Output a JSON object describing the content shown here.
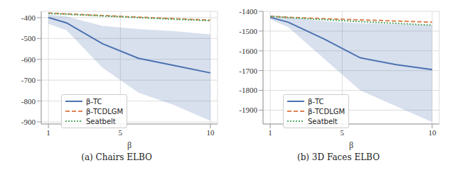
{
  "chart_data": [
    {
      "type": "line",
      "caption": "(a) Chairs ELBO",
      "x_label": "β",
      "x": [
        1,
        2,
        4,
        6,
        8,
        10
      ],
      "xlim": [
        0.6,
        10.4
      ],
      "xticks": [
        1,
        5,
        10
      ],
      "ylim": [
        -910,
        -370
      ],
      "yticks": [
        -400,
        -500,
        -600,
        -700,
        -800,
        -900
      ],
      "grid": true,
      "legend": "lower left",
      "series": [
        {
          "name": "β-TC",
          "color": "#4c72b0",
          "line_style": "solid",
          "values": [
            -400,
            -425,
            -525,
            -595,
            -630,
            -665
          ],
          "lower": [
            -430,
            -460,
            -640,
            -760,
            -820,
            -895
          ],
          "upper": [
            -385,
            -395,
            -440,
            -455,
            -465,
            -480
          ]
        },
        {
          "name": "β-TCDLGM",
          "color": "#dd8452",
          "line_style": "dashed",
          "values": [
            -378,
            -382,
            -390,
            -398,
            -405,
            -412
          ]
        },
        {
          "name": "Seatbelt",
          "color": "#55a868",
          "line_style": "dotted",
          "values": [
            -380,
            -384,
            -392,
            -400,
            -408,
            -415
          ]
        }
      ]
    },
    {
      "type": "line",
      "caption": "(b) 3D Faces ELBO",
      "x_label": "β",
      "x": [
        1,
        2,
        4,
        6,
        8,
        10
      ],
      "xlim": [
        0.6,
        10.4
      ],
      "xticks": [
        1,
        5,
        10
      ],
      "ylim": [
        -1970,
        -1400
      ],
      "yticks": [
        -1400,
        -1500,
        -1600,
        -1700,
        -1800,
        -1900
      ],
      "grid": true,
      "legend": "lower left",
      "series": [
        {
          "name": "β-TC",
          "color": "#4c72b0",
          "line_style": "solid",
          "values": [
            -1430,
            -1455,
            -1540,
            -1635,
            -1670,
            -1695
          ],
          "lower": [
            -1440,
            -1480,
            -1640,
            -1800,
            -1880,
            -1960
          ],
          "upper": [
            -1425,
            -1430,
            -1450,
            -1460,
            -1465,
            -1470
          ]
        },
        {
          "name": "β-TCDLGM",
          "color": "#dd8452",
          "line_style": "dashed",
          "values": [
            -1425,
            -1430,
            -1437,
            -1443,
            -1449,
            -1455
          ]
        },
        {
          "name": "Seatbelt",
          "color": "#55a868",
          "line_style": "dotted",
          "values": [
            -1425,
            -1432,
            -1442,
            -1452,
            -1461,
            -1470
          ]
        }
      ]
    }
  ]
}
